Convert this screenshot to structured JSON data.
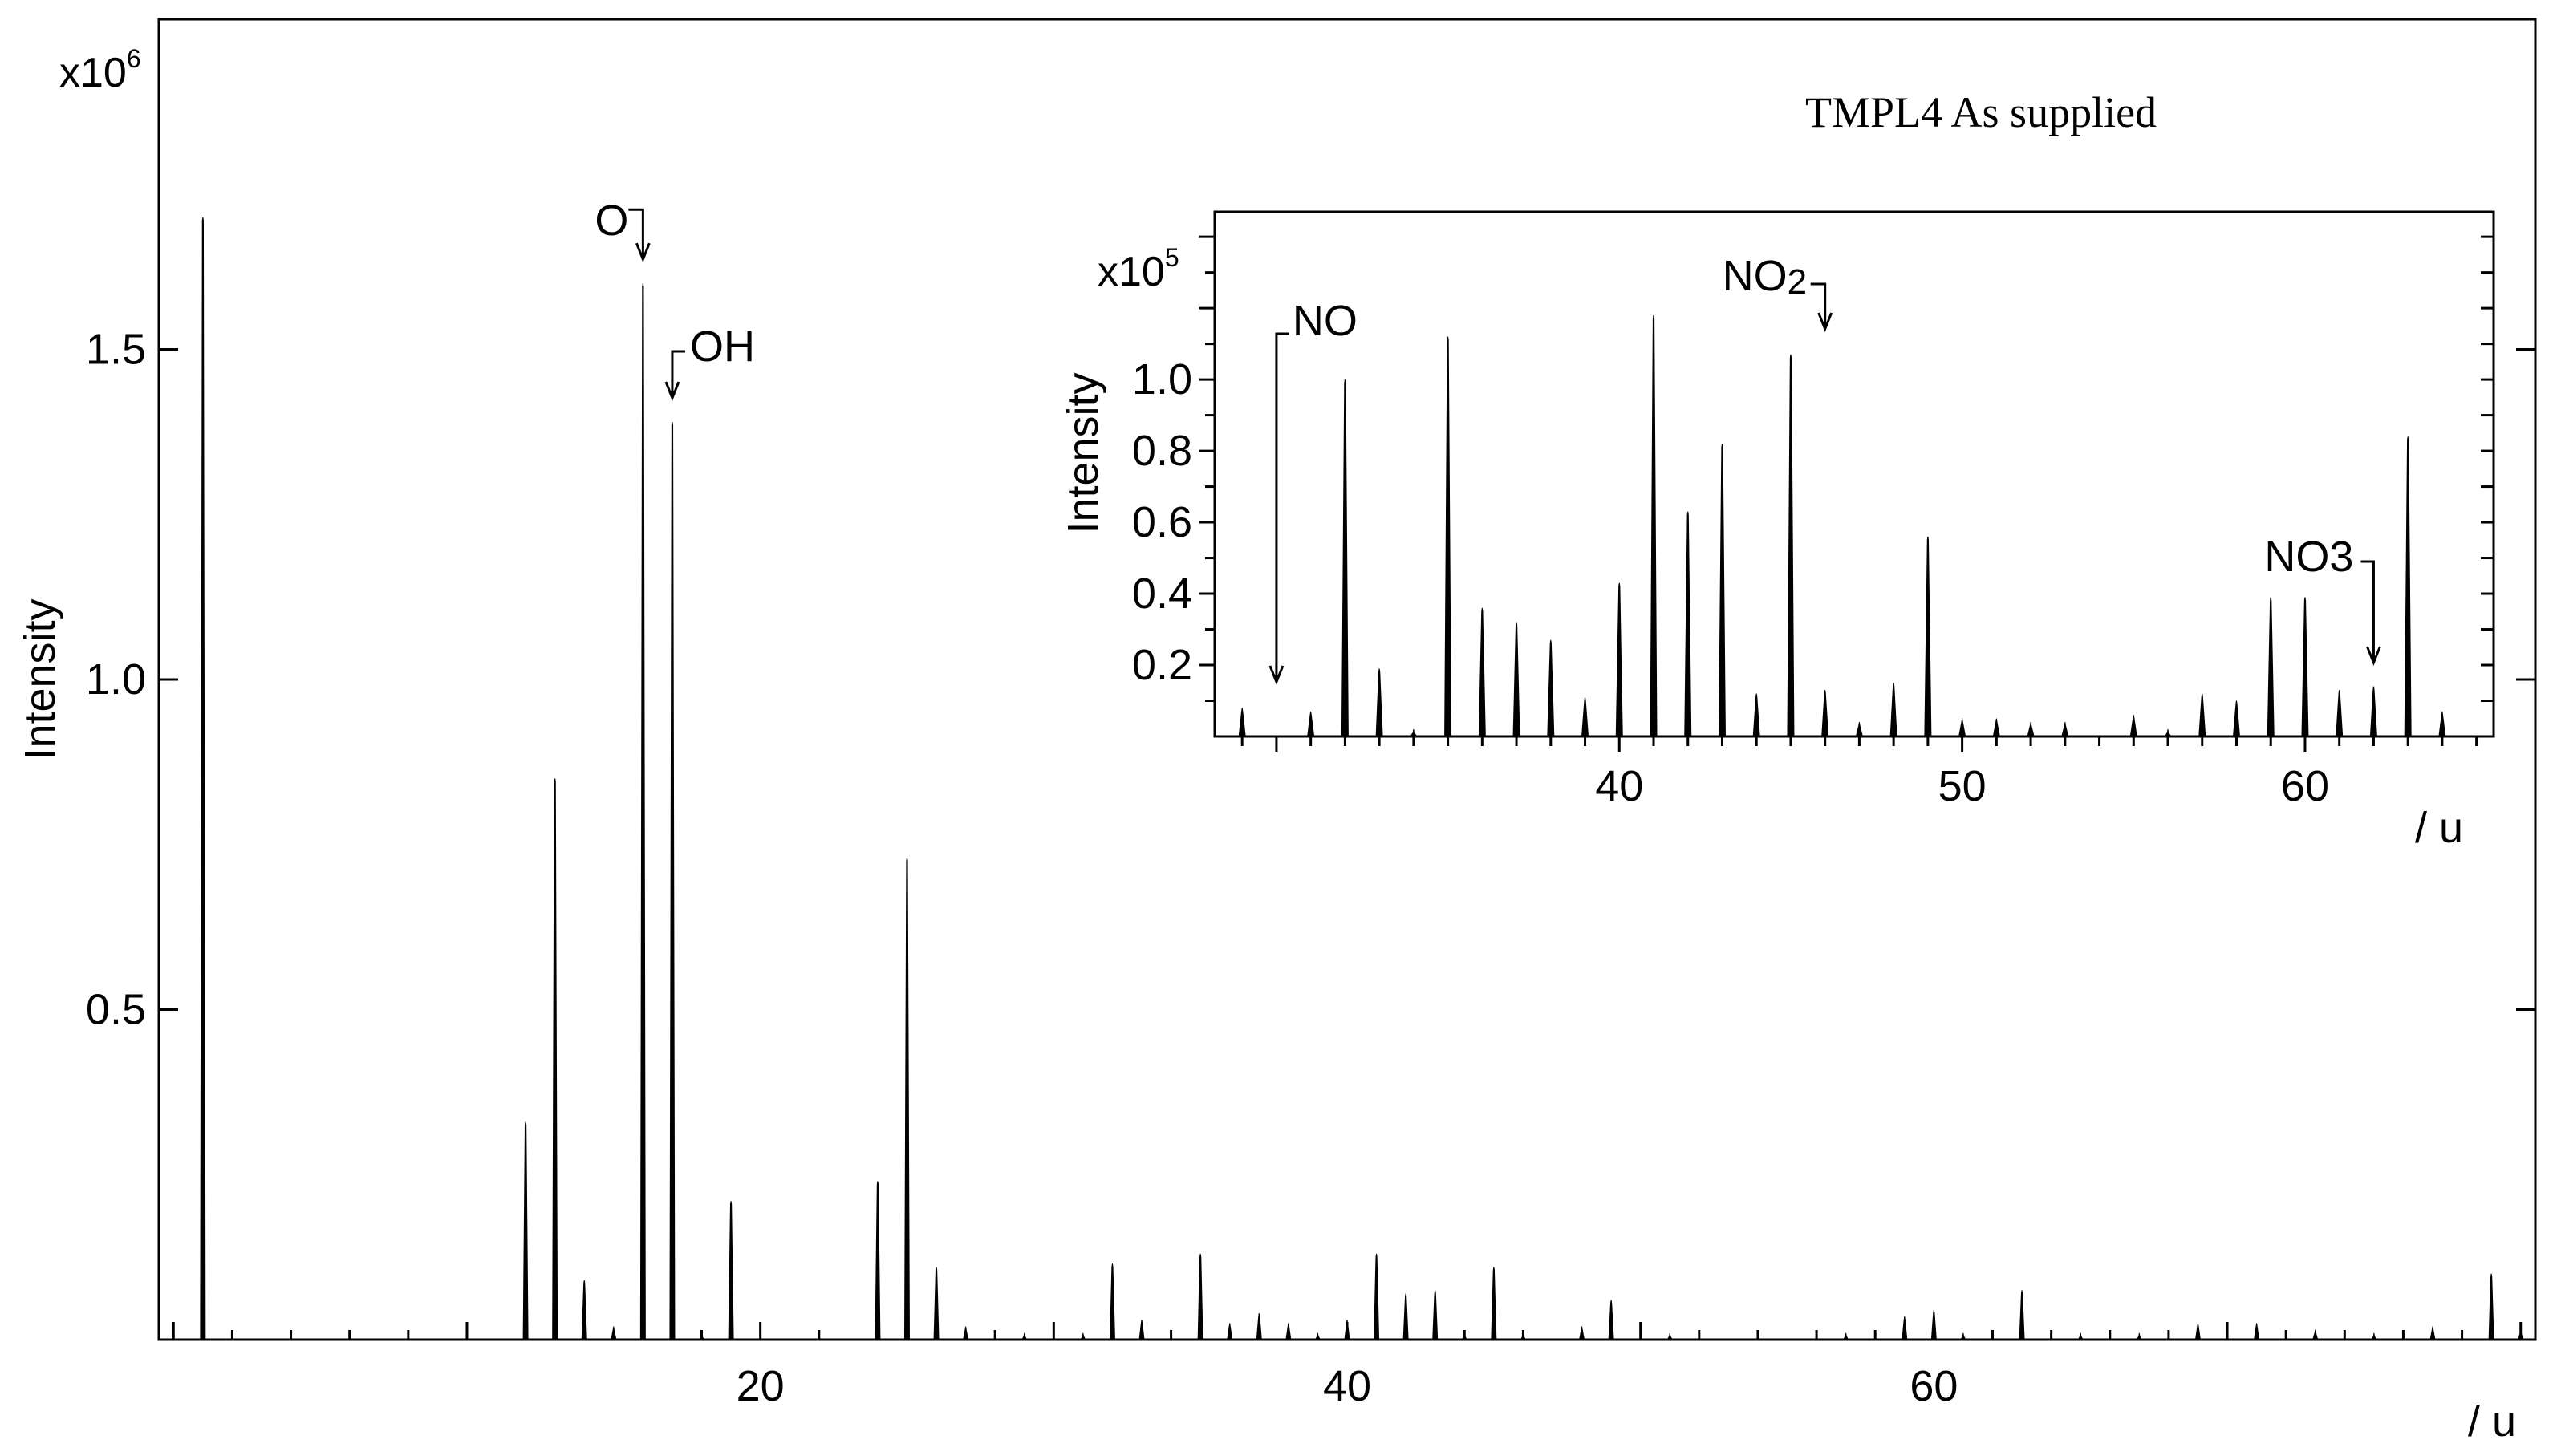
{
  "chart_data": [
    {
      "type": "bar",
      "title": "TMPL4 As supplied",
      "xlabel": "/ u",
      "ylabel": "Intensity",
      "y_multiplier": "x10",
      "y_multiplier_exp": "6",
      "xlim": [
        -0.5,
        80.5
      ],
      "ylim": [
        0,
        2.0
      ],
      "xticks": [
        20,
        40,
        60
      ],
      "xtick_labels": [
        "20",
        "40",
        "60"
      ],
      "yticks": [
        0.5,
        1.0,
        1.5
      ],
      "ytick_labels": [
        "0.5",
        "1.0",
        "1.5"
      ],
      "x": [
        1,
        12,
        13,
        14,
        15,
        16,
        17,
        18,
        19,
        24,
        25,
        26,
        27,
        29,
        30,
        31,
        32,
        33,
        35,
        36,
        37,
        38,
        39,
        40,
        41,
        42,
        43,
        44,
        45,
        46,
        48,
        49,
        51,
        56,
        57,
        59,
        60,
        61,
        63,
        65,
        67,
        69,
        71,
        73,
        75,
        77,
        79,
        80
      ],
      "values": [
        1.7,
        0.33,
        0.85,
        0.09,
        0.02,
        1.6,
        1.39,
        0.01,
        0.21,
        0.24,
        0.73,
        0.11,
        0.02,
        0.01,
        0.005,
        0.01,
        0.115,
        0.03,
        0.13,
        0.025,
        0.04,
        0.025,
        0.01,
        0.03,
        0.13,
        0.07,
        0.075,
        0.01,
        0.11,
        0.01,
        0.02,
        0.06,
        0.01,
        0.005,
        0.01,
        0.035,
        0.045,
        0.01,
        0.075,
        0.01,
        0.01,
        0.025,
        0.025,
        0.015,
        0.01,
        0.02,
        0.1,
        0.015
      ],
      "annotations": [
        {
          "text": "O",
          "x": 16
        },
        {
          "text": "OH",
          "x": 17
        }
      ]
    },
    {
      "type": "bar",
      "title": "",
      "xlabel": "/ u",
      "ylabel": "Intensity",
      "y_multiplier": "x10",
      "y_multiplier_exp": "5",
      "xlim": [
        28.2,
        65.5
      ],
      "ylim": [
        0,
        1.47
      ],
      "xticks": [
        40,
        50,
        60
      ],
      "xtick_labels": [
        "40",
        "50",
        "60"
      ],
      "yticks": [
        0.2,
        0.4,
        0.6,
        0.8,
        1.0
      ],
      "ytick_labels": [
        "0.2",
        "0.4",
        "0.6",
        "0.8",
        "1.0"
      ],
      "x": [
        29,
        31,
        32,
        33,
        34,
        35,
        36,
        37,
        38,
        39,
        40,
        41,
        42,
        43,
        44,
        45,
        46,
        47,
        48,
        49,
        50,
        51,
        52,
        53,
        55,
        56,
        57,
        58,
        59,
        60,
        61,
        62,
        63,
        64
      ],
      "values": [
        0.08,
        0.07,
        1.0,
        0.19,
        0.02,
        1.12,
        0.36,
        0.32,
        0.27,
        0.11,
        0.43,
        1.18,
        0.63,
        0.82,
        0.12,
        1.07,
        0.13,
        0.04,
        0.15,
        0.56,
        0.05,
        0.05,
        0.04,
        0.04,
        0.06,
        0.02,
        0.12,
        0.1,
        0.39,
        0.39,
        0.13,
        0.14,
        0.84,
        0.07
      ],
      "annotations": [
        {
          "text": "NO",
          "x": 30
        },
        {
          "text": "NO",
          "subscript": "2",
          "x": 46
        },
        {
          "text": "NO3",
          "x": 62
        }
      ]
    }
  ]
}
